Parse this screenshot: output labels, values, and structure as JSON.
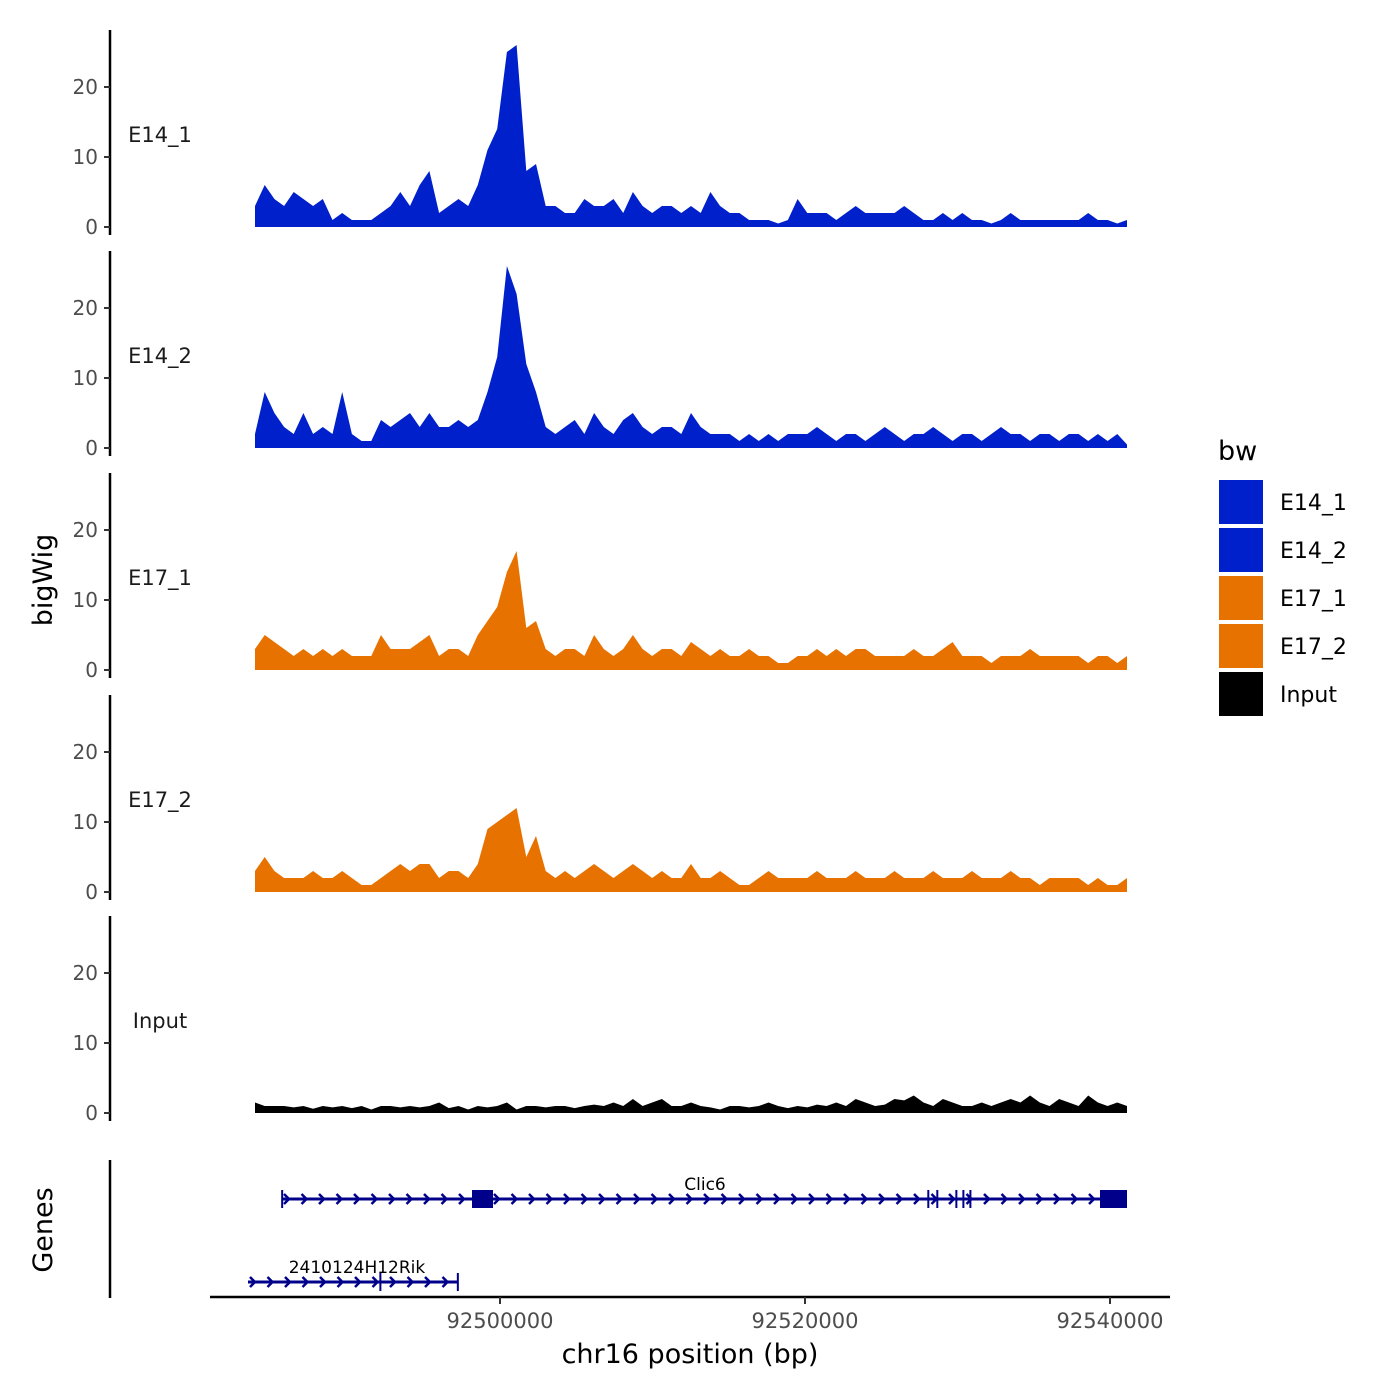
{
  "chart_data": {
    "type": "area",
    "title": "",
    "xlabel": "chr16 position (bp)",
    "ylabel": "bigWig",
    "gene_track_label": "Genes",
    "x_range": [
      92483934,
      92541115
    ],
    "x_ticks": [
      92500000,
      92520000,
      92540000
    ],
    "x_tick_labels": [
      "92500000",
      "92520000",
      "92540000"
    ],
    "ylim": [
      0,
      28
    ],
    "y_ticks": [
      0,
      10,
      20
    ],
    "y_tick_labels": [
      "0",
      "10",
      "20"
    ],
    "legend": {
      "title": "bw",
      "placement": "right",
      "entries": [
        {
          "label": "E14_1",
          "color": "#0020CC"
        },
        {
          "label": "E14_2",
          "color": "#0020CC"
        },
        {
          "label": "E17_1",
          "color": "#E87200"
        },
        {
          "label": "E17_2",
          "color": "#E87200"
        },
        {
          "label": "Input",
          "color": "#000000"
        }
      ]
    },
    "series": [
      {
        "name": "E14_1",
        "color": "#0020CC",
        "values": [
          3,
          6,
          4,
          3,
          5,
          4,
          3,
          4,
          1,
          2,
          1,
          1,
          1,
          2,
          3,
          5,
          3,
          6,
          8,
          2,
          3,
          4,
          3,
          6,
          11,
          14,
          25,
          26,
          8,
          9,
          3,
          3,
          2,
          2,
          4,
          3,
          3,
          4,
          2,
          5,
          3,
          2,
          3,
          3,
          2,
          3,
          2,
          5,
          3,
          2,
          2,
          1,
          1,
          1,
          0.5,
          1,
          4,
          2,
          2,
          2,
          1,
          2,
          3,
          2,
          2,
          2,
          2,
          3,
          2,
          1,
          1,
          2,
          1,
          2,
          1,
          1,
          0.5,
          1,
          2,
          1,
          1,
          1,
          1,
          1,
          1,
          1,
          2,
          1,
          1,
          0.5,
          1
        ]
      },
      {
        "name": "E14_2",
        "color": "#0020CC",
        "values": [
          2,
          8,
          5,
          3,
          2,
          5,
          2,
          3,
          2,
          8,
          2,
          1,
          1,
          4,
          3,
          4,
          5,
          3,
          5,
          3,
          3,
          4,
          3,
          4,
          8,
          13,
          26,
          22,
          12,
          8,
          3,
          2,
          3,
          4,
          2,
          5,
          3,
          2,
          4,
          5,
          3,
          2,
          3,
          3,
          2,
          5,
          3,
          2,
          2,
          2,
          1,
          2,
          1,
          2,
          1,
          2,
          2,
          2,
          3,
          2,
          1,
          2,
          2,
          1,
          2,
          3,
          2,
          1,
          2,
          2,
          3,
          2,
          1,
          2,
          2,
          1,
          2,
          3,
          2,
          2,
          1,
          2,
          2,
          1,
          2,
          2,
          1,
          2,
          1,
          2,
          0.5
        ]
      },
      {
        "name": "E17_1",
        "color": "#E87200",
        "values": [
          3,
          5,
          4,
          3,
          2,
          3,
          2,
          3,
          2,
          3,
          2,
          2,
          2,
          5,
          3,
          3,
          3,
          4,
          5,
          2,
          3,
          3,
          2,
          5,
          7,
          9,
          14,
          17,
          6,
          7,
          3,
          2,
          3,
          3,
          2,
          5,
          3,
          2,
          3,
          5,
          3,
          2,
          3,
          3,
          2,
          4,
          3,
          2,
          3,
          2,
          2,
          3,
          2,
          2,
          1,
          1,
          2,
          2,
          3,
          2,
          3,
          2,
          3,
          3,
          2,
          2,
          2,
          2,
          3,
          2,
          2,
          3,
          4,
          2,
          2,
          2,
          1,
          2,
          2,
          2,
          3,
          2,
          2,
          2,
          2,
          2,
          1,
          2,
          2,
          1,
          2
        ]
      },
      {
        "name": "E17_2",
        "color": "#E87200",
        "values": [
          3,
          5,
          3,
          2,
          2,
          2,
          3,
          2,
          2,
          3,
          2,
          1,
          1,
          2,
          3,
          4,
          3,
          4,
          4,
          2,
          3,
          3,
          2,
          4,
          9,
          10,
          11,
          12,
          5,
          8,
          3,
          2,
          3,
          2,
          3,
          4,
          3,
          2,
          3,
          4,
          3,
          2,
          3,
          2,
          2,
          4,
          2,
          2,
          3,
          2,
          1,
          1,
          2,
          3,
          2,
          2,
          2,
          2,
          3,
          2,
          2,
          2,
          3,
          2,
          2,
          2,
          3,
          2,
          2,
          2,
          3,
          2,
          2,
          2,
          3,
          2,
          2,
          2,
          3,
          2,
          2,
          1,
          2,
          2,
          2,
          2,
          1,
          2,
          1,
          1,
          2
        ]
      },
      {
        "name": "Input",
        "color": "#000000",
        "values": [
          1.5,
          1,
          1,
          1,
          0.8,
          1,
          0.6,
          1,
          0.8,
          1,
          0.7,
          1,
          0.5,
          1,
          1,
          0.8,
          1,
          0.8,
          1,
          1.5,
          0.7,
          1,
          0.5,
          1,
          0.8,
          1,
          1.5,
          0.5,
          1,
          1,
          0.8,
          1,
          1,
          0.7,
          1,
          1.2,
          1,
          1.5,
          1,
          2,
          1,
          1.5,
          2,
          1,
          1,
          1.5,
          1,
          0.8,
          0.5,
          1,
          1,
          0.8,
          1,
          1.5,
          1,
          0.7,
          1,
          0.8,
          1.2,
          1,
          1.5,
          1,
          2,
          1.5,
          1,
          1.2,
          2,
          1.8,
          2.5,
          1.5,
          1,
          2,
          1.5,
          1,
          1,
          1.5,
          1,
          1.5,
          2,
          1.5,
          2.5,
          1.5,
          1,
          2,
          1.5,
          1,
          2.5,
          1.5,
          1,
          1.5,
          1
        ]
      }
    ],
    "genes": [
      {
        "name": "Clic6",
        "strand": "+",
        "start": 92485705,
        "end": 92541115,
        "color": "#00008B",
        "exons": [
          [
            92485650,
            92485760
          ],
          [
            92498164,
            92499541
          ],
          [
            92528020,
            92528110
          ],
          [
            92528610,
            92528700
          ],
          [
            92529860,
            92529950
          ],
          [
            92530320,
            92530410
          ],
          [
            92530780,
            92530870
          ],
          [
            92539344,
            92541115
          ]
        ]
      },
      {
        "name": "2410124H12Rik",
        "strand": "+",
        "start": 92483475,
        "end": 92497245,
        "color": "#00008B",
        "exons": [
          [
            92492090,
            92492170
          ],
          [
            92497170,
            92497245
          ]
        ]
      }
    ]
  }
}
